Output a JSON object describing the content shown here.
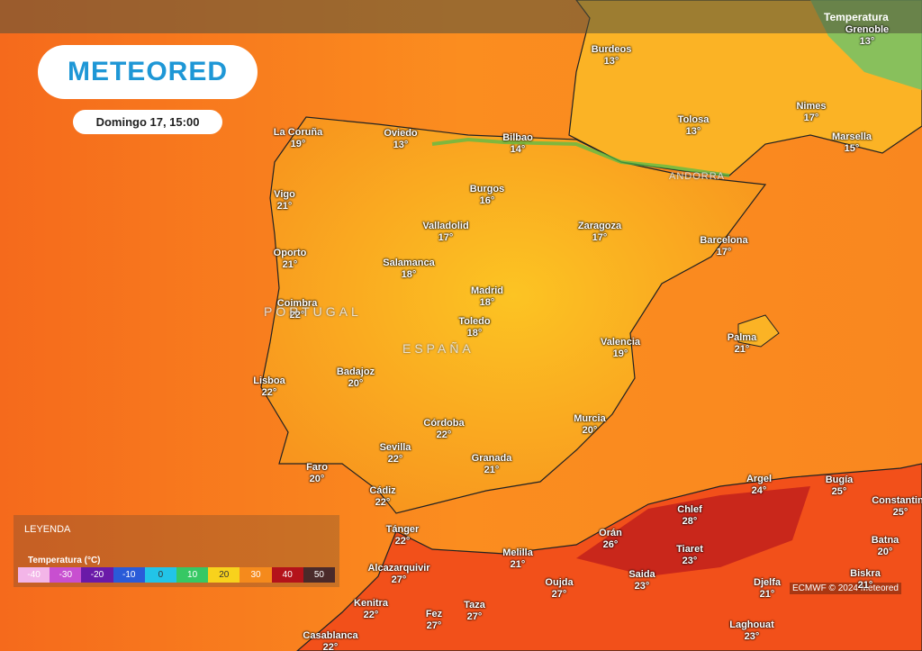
{
  "header": {
    "logo": "METEORED",
    "date": "Domingo 17, 15:00",
    "layer": "Temperatura"
  },
  "countries": [
    "PORTUGAL",
    "ESPAÑA",
    "ANDORRA"
  ],
  "cities": [
    {
      "name": "Grenoble",
      "temp": "13°"
    },
    {
      "name": "Burdeos",
      "temp": "13°"
    },
    {
      "name": "La Coruña",
      "temp": "19°"
    },
    {
      "name": "Oviedo",
      "temp": "13°"
    },
    {
      "name": "Bilbao",
      "temp": "14°"
    },
    {
      "name": "Tolosa",
      "temp": "13°"
    },
    {
      "name": "Nimes",
      "temp": "17°"
    },
    {
      "name": "Marsella",
      "temp": "15°"
    },
    {
      "name": "Vigo",
      "temp": "21°"
    },
    {
      "name": "Burgos",
      "temp": "16°"
    },
    {
      "name": "Valladolid",
      "temp": "17°"
    },
    {
      "name": "Zaragoza",
      "temp": "17°"
    },
    {
      "name": "Barcelona",
      "temp": "17°"
    },
    {
      "name": "Oporto",
      "temp": "21°"
    },
    {
      "name": "Salamanca",
      "temp": "18°"
    },
    {
      "name": "Madrid",
      "temp": "18°"
    },
    {
      "name": "Coimbra",
      "temp": "22°"
    },
    {
      "name": "Toledo",
      "temp": "18°"
    },
    {
      "name": "Valencia",
      "temp": "19°"
    },
    {
      "name": "Palma",
      "temp": "21°"
    },
    {
      "name": "Badajoz",
      "temp": "20°"
    },
    {
      "name": "Lisboa",
      "temp": "22°"
    },
    {
      "name": "Córdoba",
      "temp": "22°"
    },
    {
      "name": "Murcia",
      "temp": "20°"
    },
    {
      "name": "Sevilla",
      "temp": "22°"
    },
    {
      "name": "Granada",
      "temp": "21°"
    },
    {
      "name": "Faro",
      "temp": "20°"
    },
    {
      "name": "Cádiz",
      "temp": "22°"
    },
    {
      "name": "Argel",
      "temp": "24°"
    },
    {
      "name": "Bugía",
      "temp": "25°"
    },
    {
      "name": "Constantina",
      "temp": "25°"
    },
    {
      "name": "Chlef",
      "temp": "28°"
    },
    {
      "name": "Tánger",
      "temp": "22°"
    },
    {
      "name": "Orán",
      "temp": "26°"
    },
    {
      "name": "Tiaret",
      "temp": "23°"
    },
    {
      "name": "Batna",
      "temp": "20°"
    },
    {
      "name": "Melilla",
      "temp": "21°"
    },
    {
      "name": "Alcazarquivir",
      "temp": "27°"
    },
    {
      "name": "Saida",
      "temp": "23°"
    },
    {
      "name": "Biskra",
      "temp": "21°"
    },
    {
      "name": "Oujda",
      "temp": "27°"
    },
    {
      "name": "Djelfa",
      "temp": "21°"
    },
    {
      "name": "Kenitra",
      "temp": "22°"
    },
    {
      "name": "Fez",
      "temp": "27°"
    },
    {
      "name": "Taza",
      "temp": "27°"
    },
    {
      "name": "Laghouat",
      "temp": "23°"
    },
    {
      "name": "Casablanca",
      "temp": "22°"
    }
  ],
  "legend": {
    "title": "LEYENDA",
    "subtitle": "Temperatura (°C)",
    "scale": [
      "-40",
      "-30",
      "-20",
      "-10",
      "0",
      "10",
      "20",
      "30",
      "40",
      "50"
    ]
  },
  "credit": "ECMWF © 2024 Meteored"
}
